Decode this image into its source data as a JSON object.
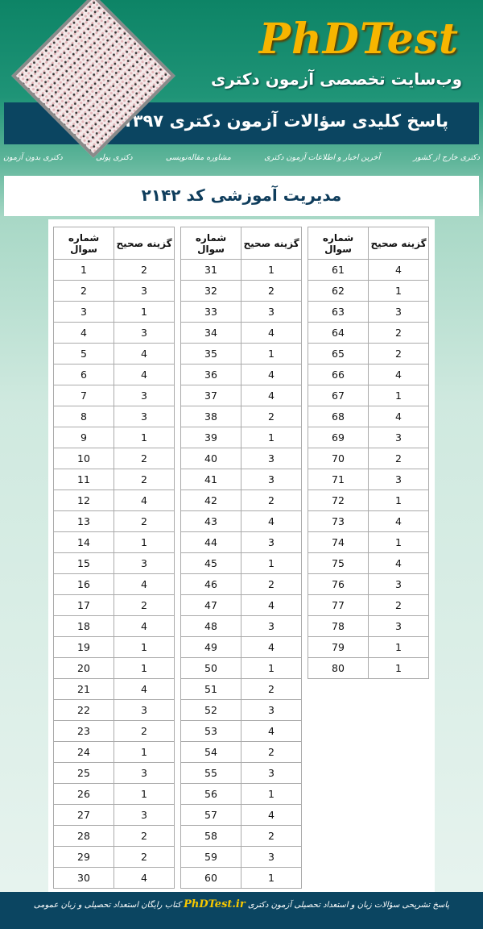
{
  "header": {
    "logo": "PhDTest",
    "tagline": "وب‌سایت تخصصی آزمون دکتری",
    "banner": "پاسخ کلیدی سؤالات آزمون دکتری ۱۳۹۷"
  },
  "nav": [
    "دکتری بدون آزمون",
    "دکتری پولی",
    "مشاوره مقاله‌نویسی",
    "آخرین اخبار و اطلاعات آزمون دکتری",
    "دکتری خارج از کشور"
  ],
  "title": "مدیریت آموزشی کد ۲۱۴۲",
  "table_headers": {
    "question": "شماره سوال",
    "answer": "گزینه صحیح"
  },
  "tables": [
    {
      "questions": [
        1,
        2,
        3,
        4,
        5,
        6,
        7,
        8,
        9,
        10,
        11,
        12,
        13,
        14,
        15,
        16,
        17,
        18,
        19,
        20,
        21,
        22,
        23,
        24,
        25,
        26,
        27,
        28,
        29,
        30
      ],
      "answers": [
        2,
        3,
        1,
        3,
        4,
        4,
        3,
        3,
        1,
        2,
        2,
        4,
        2,
        1,
        3,
        4,
        2,
        4,
        1,
        1,
        4,
        3,
        2,
        1,
        3,
        1,
        3,
        2,
        2,
        4
      ]
    },
    {
      "questions": [
        31,
        32,
        33,
        34,
        35,
        36,
        37,
        38,
        39,
        40,
        41,
        42,
        43,
        44,
        45,
        46,
        47,
        48,
        49,
        50,
        51,
        52,
        53,
        54,
        55,
        56,
        57,
        58,
        59,
        60
      ],
      "answers": [
        1,
        2,
        3,
        4,
        1,
        4,
        4,
        2,
        1,
        3,
        3,
        2,
        4,
        3,
        1,
        2,
        4,
        3,
        4,
        1,
        2,
        3,
        4,
        2,
        3,
        1,
        4,
        2,
        3,
        1
      ]
    },
    {
      "questions": [
        61,
        62,
        63,
        64,
        65,
        66,
        67,
        68,
        69,
        70,
        71,
        72,
        73,
        74,
        75,
        76,
        77,
        78,
        79,
        80
      ],
      "answers": [
        4,
        1,
        3,
        2,
        2,
        4,
        1,
        4,
        3,
        2,
        3,
        1,
        4,
        1,
        4,
        3,
        2,
        3,
        1,
        1
      ]
    }
  ],
  "footer": {
    "before": "پاسخ تشریحی سؤالات زبان و استعداد تحصیلی آزمون دکتری",
    "logo": "PhDTest.ir",
    "after": "کتاب رایگان استعداد تحصیلی و زبان عمومی"
  },
  "colors": {
    "banner": "#0b4561",
    "logo": "#f7b500",
    "title": "#0f3d5c"
  }
}
